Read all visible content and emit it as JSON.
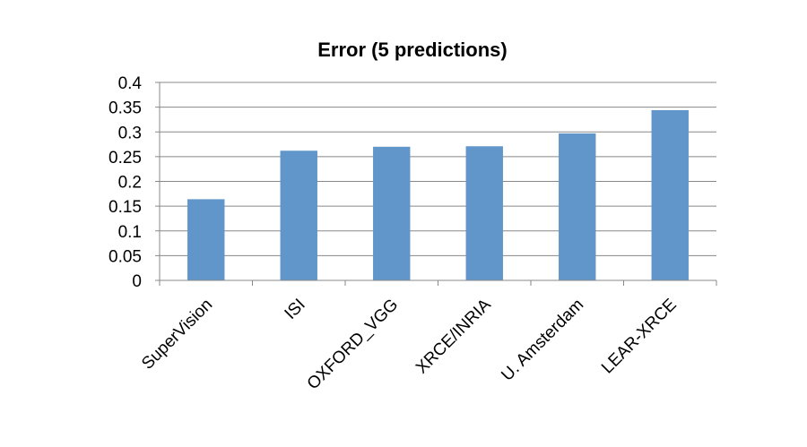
{
  "chart_data": {
    "type": "bar",
    "title": "Error (5 predictions)",
    "xlabel": "",
    "ylabel": "",
    "categories": [
      "SuperVision",
      "ISI",
      "OXFORD_VGG",
      "XRCE/INRIA",
      "U. Amsterdam",
      "LEAR-XRCE"
    ],
    "values": [
      0.164,
      0.262,
      0.27,
      0.271,
      0.297,
      0.344
    ],
    "ylim": [
      0,
      0.4
    ],
    "yticks": [
      "0",
      "0.05",
      "0.1",
      "0.15",
      "0.2",
      "0.25",
      "0.3",
      "0.35",
      "0.4"
    ],
    "grid": true,
    "legend": "none",
    "bar_color": "#6096C9",
    "grid_color": "#888888"
  }
}
